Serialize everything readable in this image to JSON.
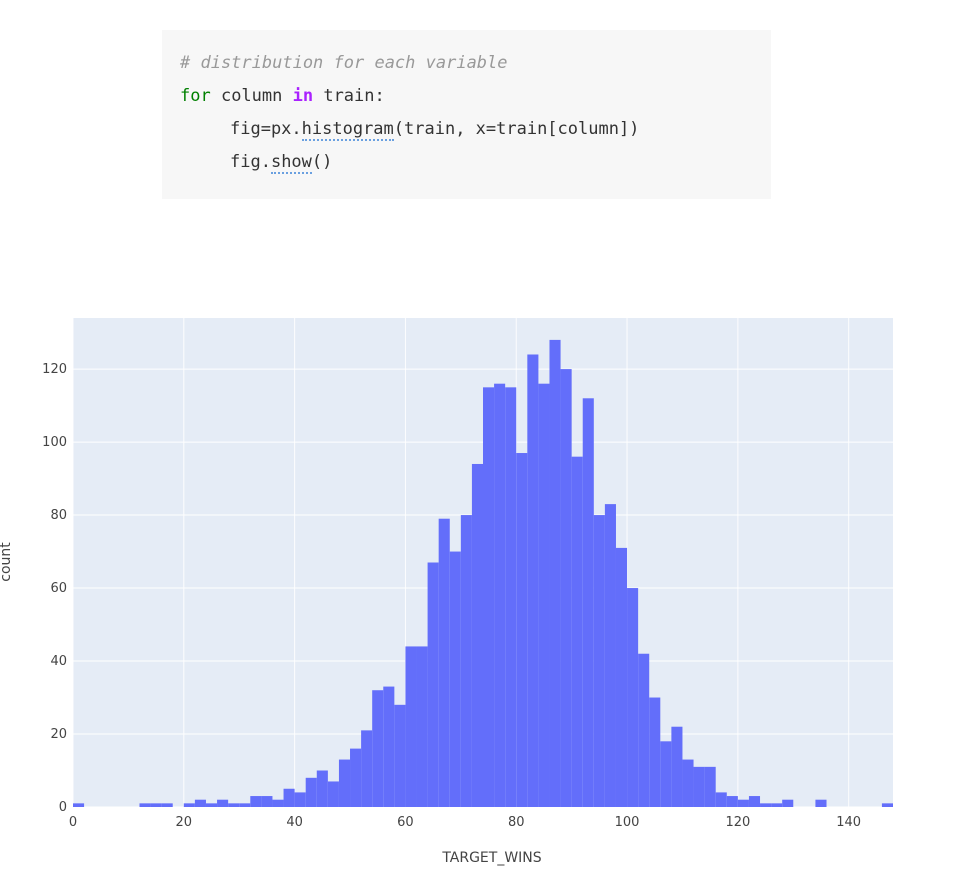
{
  "code": {
    "lines": [
      [
        "# distribution for each variable"
      ],
      [
        "for",
        " column ",
        "in",
        " train:"
      ],
      [
        "fig=px.",
        "histogram",
        "(train, x=train[column])"
      ],
      [
        "fig.",
        "show",
        "()"
      ]
    ]
  },
  "chart_data": {
    "type": "histogram",
    "x_label": "TARGET_WINS",
    "y_label": "count",
    "color": "#636efa",
    "grid": true,
    "bins": [
      0,
      2,
      4,
      6,
      8,
      10,
      12,
      14,
      16,
      18,
      20,
      22,
      24,
      26,
      28,
      30,
      32,
      34,
      36,
      38,
      40,
      42,
      44,
      46,
      48,
      50,
      52,
      54,
      56,
      58,
      60,
      62,
      64,
      66,
      68,
      70,
      72,
      74,
      76,
      78,
      80,
      82,
      84,
      86,
      88,
      90,
      92,
      94,
      96,
      98,
      100,
      102,
      104,
      106,
      108,
      110,
      112,
      114,
      116,
      118,
      120,
      122,
      124,
      126,
      128,
      130,
      132,
      134,
      136,
      138,
      140,
      142,
      144,
      146,
      148
    ],
    "values": [
      1,
      0,
      0,
      0,
      0,
      0,
      1,
      1,
      1,
      0,
      1,
      2,
      1,
      2,
      1,
      1,
      3,
      3,
      2,
      5,
      4,
      8,
      10,
      7,
      13,
      16,
      21,
      32,
      33,
      28,
      44,
      44,
      67,
      79,
      70,
      80,
      94,
      115,
      116,
      115,
      97,
      124,
      116,
      128,
      120,
      96,
      112,
      80,
      83,
      71,
      60,
      42,
      30,
      18,
      22,
      13,
      11,
      11,
      4,
      3,
      2,
      3,
      1,
      1,
      2,
      0,
      0,
      2,
      0,
      0,
      0,
      0,
      0,
      1
    ],
    "xlim": [
      0,
      148
    ],
    "xticks": [
      0,
      20,
      40,
      60,
      80,
      100,
      120,
      140
    ],
    "ylim": [
      0,
      134
    ],
    "yticks": [
      0,
      20,
      40,
      60,
      80,
      100,
      120
    ]
  }
}
